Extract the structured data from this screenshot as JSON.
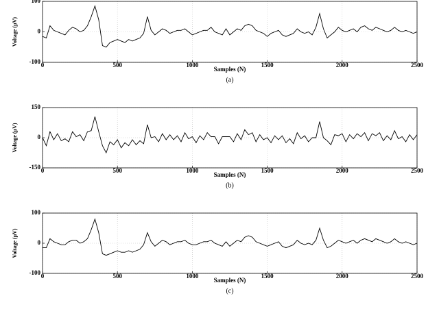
{
  "chart_data": [
    {
      "type": "line",
      "ylabel": "Voltage (μV)",
      "xlabel": "Samples (N)",
      "caption": "(a)",
      "color": "#000000",
      "grid": true,
      "xlim": [
        0,
        2500
      ],
      "xticks": [
        0,
        500,
        1000,
        1500,
        2000,
        2500
      ],
      "ylim": [
        -100,
        100
      ],
      "yticks": [
        -100,
        0,
        100
      ],
      "x": [
        0,
        25,
        50,
        75,
        100,
        125,
        150,
        175,
        200,
        225,
        250,
        275,
        300,
        325,
        350,
        375,
        400,
        425,
        450,
        475,
        500,
        525,
        550,
        575,
        600,
        625,
        650,
        675,
        700,
        725,
        750,
        775,
        800,
        825,
        850,
        875,
        900,
        925,
        950,
        975,
        1000,
        1025,
        1050,
        1075,
        1100,
        1125,
        1150,
        1175,
        1200,
        1225,
        1250,
        1275,
        1300,
        1325,
        1350,
        1375,
        1400,
        1425,
        1450,
        1475,
        1500,
        1525,
        1550,
        1575,
        1600,
        1625,
        1650,
        1675,
        1700,
        1725,
        1750,
        1775,
        1800,
        1825,
        1850,
        1875,
        1900,
        1925,
        1950,
        1975,
        2000,
        2025,
        2050,
        2075,
        2100,
        2125,
        2150,
        2175,
        2200,
        2225,
        2250,
        2275,
        2300,
        2325,
        2350,
        2375,
        2400,
        2425,
        2450,
        2475,
        2500
      ],
      "values": [
        -15,
        -20,
        20,
        5,
        0,
        -5,
        -10,
        5,
        15,
        10,
        0,
        5,
        20,
        50,
        85,
        40,
        -45,
        -50,
        -35,
        -30,
        -25,
        -30,
        -35,
        -25,
        -30,
        -25,
        -20,
        -5,
        50,
        5,
        -10,
        0,
        10,
        5,
        -5,
        0,
        5,
        5,
        10,
        0,
        -10,
        -5,
        0,
        5,
        5,
        15,
        0,
        -5,
        -10,
        10,
        -10,
        0,
        10,
        5,
        20,
        25,
        20,
        5,
        0,
        -5,
        -15,
        -5,
        0,
        5,
        -10,
        -15,
        -10,
        -5,
        10,
        0,
        -5,
        0,
        -10,
        15,
        60,
        10,
        -20,
        -10,
        0,
        15,
        5,
        0,
        5,
        10,
        0,
        15,
        20,
        10,
        5,
        15,
        10,
        5,
        0,
        5,
        15,
        5,
        0,
        5,
        0,
        -5,
        0
      ]
    },
    {
      "type": "line",
      "ylabel": "Voltage (μV)",
      "xlabel": "Samples (N)",
      "caption": "(b)",
      "color": "#000000",
      "grid": true,
      "xlim": [
        0,
        2500
      ],
      "xticks": [
        0,
        500,
        1000,
        1500,
        2000,
        2500
      ],
      "ylim": [
        -150,
        150
      ],
      "yticks": [
        -150,
        0,
        150
      ],
      "x": [
        0,
        25,
        50,
        75,
        100,
        125,
        150,
        175,
        200,
        225,
        250,
        275,
        300,
        325,
        350,
        375,
        400,
        425,
        450,
        475,
        500,
        525,
        550,
        575,
        600,
        625,
        650,
        675,
        700,
        725,
        750,
        775,
        800,
        825,
        850,
        875,
        900,
        925,
        950,
        975,
        1000,
        1025,
        1050,
        1075,
        1100,
        1125,
        1150,
        1175,
        1200,
        1225,
        1250,
        1275,
        1300,
        1325,
        1350,
        1375,
        1400,
        1425,
        1450,
        1475,
        1500,
        1525,
        1550,
        1575,
        1600,
        1625,
        1650,
        1675,
        1700,
        1725,
        1750,
        1775,
        1800,
        1825,
        1850,
        1875,
        1900,
        1925,
        1950,
        1975,
        2000,
        2025,
        2050,
        2075,
        2100,
        2125,
        2150,
        2175,
        2200,
        2225,
        2250,
        2275,
        2300,
        2325,
        2350,
        2375,
        2400,
        2425,
        2450,
        2475,
        2500
      ],
      "values": [
        0,
        -40,
        30,
        -10,
        20,
        -15,
        -5,
        -20,
        30,
        5,
        15,
        -15,
        30,
        35,
        105,
        30,
        -40,
        -75,
        -20,
        -35,
        -10,
        -50,
        -25,
        -40,
        -10,
        -35,
        -15,
        -30,
        65,
        0,
        5,
        -20,
        20,
        -10,
        15,
        -10,
        10,
        -20,
        25,
        -5,
        5,
        -25,
        10,
        -10,
        25,
        5,
        5,
        -30,
        5,
        5,
        5,
        -20,
        20,
        -10,
        40,
        15,
        25,
        -20,
        15,
        -10,
        0,
        -25,
        10,
        -10,
        10,
        -25,
        -5,
        -30,
        25,
        -5,
        10,
        -20,
        0,
        0,
        80,
        0,
        -15,
        -35,
        15,
        10,
        20,
        -20,
        15,
        -5,
        20,
        5,
        25,
        -15,
        20,
        10,
        25,
        -15,
        10,
        -10,
        35,
        -5,
        5,
        -20,
        15,
        -10,
        15
      ]
    },
    {
      "type": "line",
      "ylabel": "Voltage (μV)",
      "xlabel": "Samples (N)",
      "caption": "(c)",
      "color": "#000000",
      "grid": true,
      "xlim": [
        0,
        2500
      ],
      "xticks": [
        0,
        500,
        1000,
        1500,
        2000,
        2500
      ],
      "ylim": [
        -100,
        100
      ],
      "yticks": [
        -100,
        0,
        100
      ],
      "x": [
        0,
        25,
        50,
        75,
        100,
        125,
        150,
        175,
        200,
        225,
        250,
        275,
        300,
        325,
        350,
        375,
        400,
        425,
        450,
        475,
        500,
        525,
        550,
        575,
        600,
        625,
        650,
        675,
        700,
        725,
        750,
        775,
        800,
        825,
        850,
        875,
        900,
        925,
        950,
        975,
        1000,
        1025,
        1050,
        1075,
        1100,
        1125,
        1150,
        1175,
        1200,
        1225,
        1250,
        1275,
        1300,
        1325,
        1350,
        1375,
        1400,
        1425,
        1450,
        1475,
        1500,
        1525,
        1550,
        1575,
        1600,
        1625,
        1650,
        1675,
        1700,
        1725,
        1750,
        1775,
        1800,
        1825,
        1850,
        1875,
        1900,
        1925,
        1950,
        1975,
        2000,
        2025,
        2050,
        2075,
        2100,
        2125,
        2150,
        2175,
        2200,
        2225,
        2250,
        2275,
        2300,
        2325,
        2350,
        2375,
        2400,
        2425,
        2450,
        2475,
        2500
      ],
      "values": [
        -15,
        -15,
        15,
        5,
        0,
        -5,
        -5,
        5,
        10,
        10,
        0,
        5,
        15,
        45,
        80,
        35,
        -35,
        -40,
        -35,
        -30,
        -25,
        -30,
        -30,
        -25,
        -30,
        -25,
        -20,
        -5,
        35,
        5,
        -10,
        0,
        10,
        5,
        -5,
        0,
        5,
        5,
        10,
        0,
        -5,
        -5,
        0,
        5,
        5,
        10,
        0,
        -5,
        -10,
        5,
        -10,
        0,
        10,
        5,
        20,
        25,
        20,
        5,
        0,
        -5,
        -10,
        -5,
        0,
        5,
        -10,
        -15,
        -10,
        -5,
        10,
        0,
        -5,
        0,
        -5,
        10,
        50,
        10,
        -15,
        -10,
        0,
        10,
        5,
        0,
        5,
        10,
        0,
        10,
        15,
        10,
        5,
        15,
        10,
        5,
        0,
        5,
        15,
        5,
        0,
        5,
        0,
        -5,
        0
      ]
    }
  ]
}
